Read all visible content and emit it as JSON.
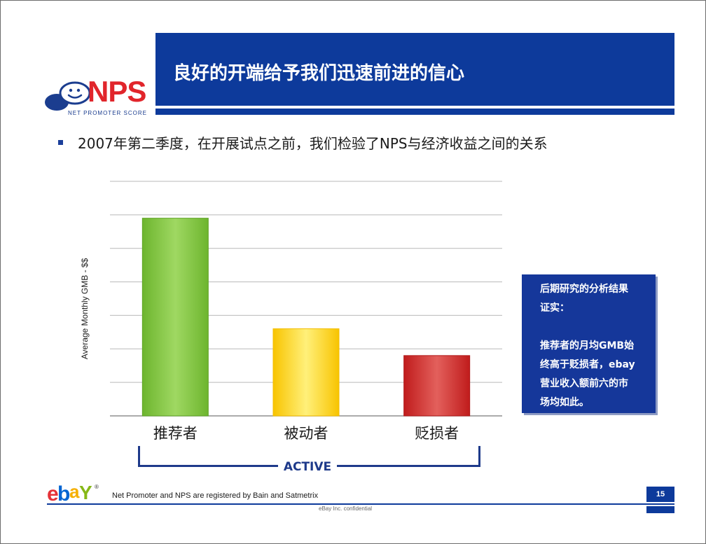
{
  "header": {
    "title": "良好的开端给予我们迅速前进的信心",
    "logo": {
      "text": "NPS",
      "subtext": "NET PROMOTER SCORE",
      "icon": "smiley-speech-bubble-icon"
    }
  },
  "bullet": {
    "text": "2007年第二季度，在开展试点之前，我们检验了NPS与经济收益之间的关系"
  },
  "chart_data": {
    "type": "bar",
    "categories": [
      "推荐者",
      "被动者",
      "贬损者"
    ],
    "values": [
      5.9,
      2.6,
      1.8
    ],
    "ylabel": "Average Monthly GMB - $$",
    "xlabel": "",
    "ylim": [
      0,
      7
    ],
    "grid": true,
    "bar_colors": [
      "#7cc13c",
      "#ffd73a",
      "#cc2a2a"
    ],
    "bar_edge_colors": [
      "#5fa426",
      "#f3bd00",
      "#b01818"
    ]
  },
  "bracket": {
    "label": "ACTIVE"
  },
  "callout": {
    "line1": "后期研究的分析结果",
    "line2": "证实：",
    "body_lines": [
      "推荐者的月均GMB始",
      "终高于贬损者，ebay",
      "营业收入额前六的市",
      "场均如此。"
    ]
  },
  "footer": {
    "ebay_logo_letters": [
      "e",
      "b",
      "a",
      "Y"
    ],
    "ebay_logo_mark": "®",
    "ebay_logo_colors": [
      "#e53238",
      "#0064d2",
      "#f5af02",
      "#86b817"
    ],
    "note": "Net Promoter and NPS are registered by Bain and Satmetrix",
    "page_number": "15",
    "confidential": "eBay Inc. confidential"
  },
  "colors": {
    "brand_blue": "#0d3a9b",
    "nps_red": "#e1252b"
  }
}
